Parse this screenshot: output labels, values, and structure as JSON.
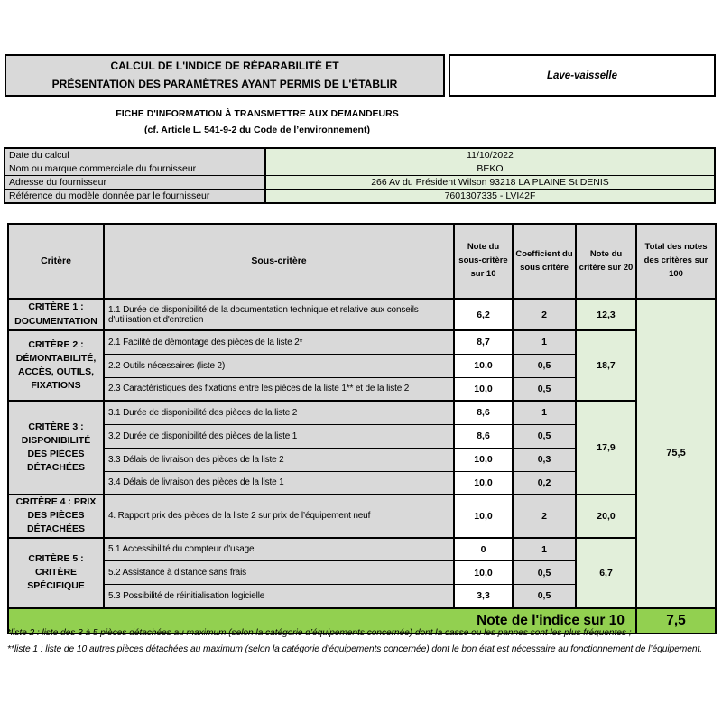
{
  "colors": {
    "cell_gray": "#d9d9d9",
    "cell_light_green": "#e2efda",
    "index_green": "#92d050",
    "border": "#000000"
  },
  "header": {
    "title_line1": "CALCUL DE L'INDICE DE RÉPARABILITÉ ET",
    "title_line2": "PRÉSENTATION DES PARAMÈTRES AYANT PERMIS DE L'ÉTABLIR",
    "product": "Lave-vaisselle",
    "subtitle_line1": "FICHE D'INFORMATION À TRANSMETTRE AUX DEMANDEURS",
    "subtitle_line2": "(cf. Article L. 541-9-2 du Code de l’environnement)"
  },
  "info": {
    "rows": [
      {
        "label": "Date du calcul",
        "value": "11/10/2022"
      },
      {
        "label": "Nom ou marque commerciale du fournisseur",
        "value": "BEKO"
      },
      {
        "label": "Adresse du fournisseur",
        "value": "266 Av du Président Wilson 93218 LA PLAINE St DENIS"
      },
      {
        "label": "Référence du modèle donnée par le fournisseur",
        "value": "7601307335 - LVI42F"
      }
    ]
  },
  "main": {
    "columns": [
      "Critère",
      "Sous-critère",
      "Note du sous-critère sur 10",
      "Coefficient du sous critère",
      "Note du critère sur 20",
      "Total des notes des critères sur 100"
    ],
    "criteria": [
      {
        "name": "CRITÈRE 1 : DOCUMENTATION",
        "note20": "12,3",
        "subs": [
          {
            "label": "1.1 Durée de disponibilité de la documentation technique et relative aux conseils d'utilisation et d'entretien",
            "note10": "6,2",
            "coef": "2"
          }
        ]
      },
      {
        "name": "CRITÈRE 2 : DÉMONTABILITÉ, ACCÈS, OUTILS, FIXATIONS",
        "note20": "18,7",
        "subs": [
          {
            "label": "2.1 Facilité de démontage des pièces de la liste 2*",
            "note10": "8,7",
            "coef": "1"
          },
          {
            "label": "2.2 Outils nécessaires (liste 2)",
            "note10": "10,0",
            "coef": "0,5"
          },
          {
            "label": "2.3 Caractéristiques des fixations entre les pièces de la liste 1** et de la liste 2",
            "note10": "10,0",
            "coef": "0,5"
          }
        ]
      },
      {
        "name": "CRITÈRE 3 : DISPONIBILITÉ DES PIÈCES DÉTACHÉES",
        "note20": "17,9",
        "subs": [
          {
            "label": "3.1 Durée de disponibilité des pièces de la liste 2",
            "note10": "8,6",
            "coef": "1"
          },
          {
            "label": "3.2 Durée de disponibilité des pièces de la liste 1",
            "note10": "8,6",
            "coef": "0,5"
          },
          {
            "label": "3.3 Délais de livraison des pièces de la liste 2",
            "note10": "10,0",
            "coef": "0,3"
          },
          {
            "label": "3.4 Délais de livraison des pièces de la liste 1",
            "note10": "10,0",
            "coef": "0,2"
          }
        ]
      },
      {
        "name": "CRITÈRE 4 : PRIX DES PIÈCES DÉTACHÉES",
        "note20": "20,0",
        "subs": [
          {
            "label": "4. Rapport prix des pièces de la liste 2 sur prix de l’équipement neuf",
            "note10": "10,0",
            "coef": "2"
          }
        ]
      },
      {
        "name": "CRITÈRE 5 : CRITÈRE SPÉCIFIQUE",
        "note20": "6,7",
        "subs": [
          {
            "label": "5.1 Accessibilité du compteur d'usage",
            "note10": "0",
            "coef": "1"
          },
          {
            "label": "5.2 Assistance à distance sans frais",
            "note10": "10,0",
            "coef": "0,5"
          },
          {
            "label": "5.3 Possibilité de réinitialisation logicielle",
            "note10": "3,3",
            "coef": "0,5"
          }
        ]
      }
    ],
    "total100": "75,5",
    "index_label": "Note de l'indice sur 10",
    "index_value": "7,5"
  },
  "footnotes": [
    "*liste 2 : liste des 3 à 5 pièces détachées au maximum (selon la catégorie d’équipements concernée) dont la casse ou les pannes sont les plus fréquentes ;",
    "**liste 1 : liste de 10 autres pièces détachées au maximum (selon la catégorie d’équipements concernée) dont le bon état est nécessaire au fonctionnement de l’équipement."
  ]
}
